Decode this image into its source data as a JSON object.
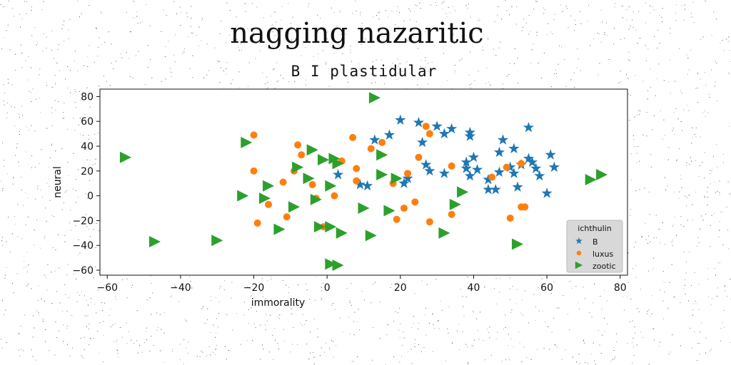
{
  "page_title": "nagging nazaritic",
  "chart_data": {
    "type": "scatter",
    "title": "B I plastidular",
    "xlabel": "immorality",
    "ylabel": "neural",
    "xlim": [
      -62,
      82
    ],
    "ylim": [
      -64,
      86
    ],
    "xticks": [
      -60,
      -40,
      -20,
      0,
      20,
      40,
      60,
      80
    ],
    "yticks": [
      -60,
      -40,
      -20,
      0,
      20,
      40,
      60,
      80
    ],
    "grid": false,
    "legend": {
      "title": "ichthulin",
      "position": "lower-right"
    },
    "series": [
      {
        "name": "B",
        "marker": "star",
        "color": "#1f77b4",
        "points": [
          [
            13,
            45
          ],
          [
            17,
            49
          ],
          [
            20,
            61
          ],
          [
            25,
            59
          ],
          [
            26,
            43
          ],
          [
            27,
            25
          ],
          [
            28,
            20
          ],
          [
            30,
            56
          ],
          [
            32,
            18
          ],
          [
            32,
            50
          ],
          [
            34,
            54
          ],
          [
            38,
            27
          ],
          [
            38,
            22
          ],
          [
            39,
            48
          ],
          [
            39,
            51
          ],
          [
            39,
            16
          ],
          [
            40,
            31
          ],
          [
            41,
            21
          ],
          [
            44,
            13
          ],
          [
            44,
            5
          ],
          [
            46,
            5
          ],
          [
            47,
            19
          ],
          [
            47,
            35
          ],
          [
            48,
            45
          ],
          [
            50,
            23
          ],
          [
            51,
            18
          ],
          [
            51,
            38
          ],
          [
            52,
            7
          ],
          [
            53,
            25
          ],
          [
            55,
            55
          ],
          [
            55,
            30
          ],
          [
            56,
            27
          ],
          [
            57,
            22
          ],
          [
            58,
            16
          ],
          [
            60,
            2
          ],
          [
            61,
            33
          ],
          [
            62,
            23
          ],
          [
            3,
            17
          ],
          [
            9,
            9
          ],
          [
            11,
            8
          ],
          [
            21,
            10
          ],
          [
            22,
            14
          ]
        ]
      },
      {
        "name": "luxus",
        "marker": "circle",
        "color": "#ff7f0e",
        "points": [
          [
            -20,
            49
          ],
          [
            -20,
            20
          ],
          [
            -19,
            -22
          ],
          [
            -16,
            -7
          ],
          [
            -12,
            11
          ],
          [
            -11,
            -17
          ],
          [
            -9,
            20
          ],
          [
            -8,
            41
          ],
          [
            -7,
            33
          ],
          [
            -4,
            9
          ],
          [
            -3,
            -2
          ],
          [
            -1,
            -25
          ],
          [
            2,
            0
          ],
          [
            4,
            28
          ],
          [
            7,
            47
          ],
          [
            8,
            22
          ],
          [
            8,
            12
          ],
          [
            12,
            38
          ],
          [
            15,
            43
          ],
          [
            18,
            10
          ],
          [
            19,
            -19
          ],
          [
            21,
            -10
          ],
          [
            22,
            18
          ],
          [
            24,
            -5
          ],
          [
            25,
            31
          ],
          [
            27,
            56
          ],
          [
            28,
            50
          ],
          [
            28,
            -21
          ],
          [
            34,
            24
          ],
          [
            34,
            -15
          ],
          [
            45,
            15
          ],
          [
            49,
            23
          ],
          [
            50,
            -18
          ],
          [
            53,
            26
          ],
          [
            53,
            -9
          ],
          [
            54,
            -9
          ]
        ]
      },
      {
        "name": "zootic",
        "marker": "triangle-right",
        "color": "#2ca02c",
        "points": [
          [
            -55,
            31
          ],
          [
            -47,
            -37
          ],
          [
            -30,
            -36
          ],
          [
            -23,
            0
          ],
          [
            -22,
            43
          ],
          [
            -17,
            -2
          ],
          [
            -16,
            8
          ],
          [
            -13,
            -27
          ],
          [
            -9,
            -9
          ],
          [
            -8,
            23
          ],
          [
            -5,
            14
          ],
          [
            -4,
            37
          ],
          [
            -3,
            -3
          ],
          [
            -2,
            -25
          ],
          [
            -1,
            29
          ],
          [
            1,
            -25
          ],
          [
            1,
            8
          ],
          [
            1,
            -55
          ],
          [
            2,
            30
          ],
          [
            3,
            -56
          ],
          [
            3,
            26
          ],
          [
            4,
            -30
          ],
          [
            10,
            -10
          ],
          [
            12,
            -32
          ],
          [
            13,
            79
          ],
          [
            15,
            17
          ],
          [
            15,
            33
          ],
          [
            17,
            -12
          ],
          [
            19,
            14
          ],
          [
            32,
            -30
          ],
          [
            35,
            -7
          ],
          [
            37,
            3
          ],
          [
            52,
            -39
          ],
          [
            72,
            13
          ],
          [
            75,
            17
          ]
        ]
      }
    ]
  }
}
